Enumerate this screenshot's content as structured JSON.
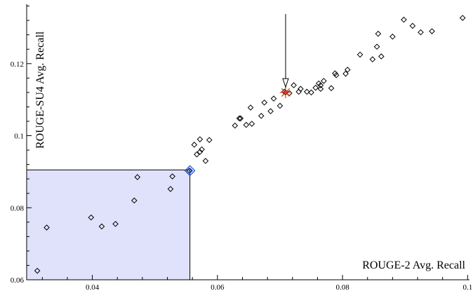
{
  "chart_data": {
    "type": "scatter",
    "xlabel": "ROUGE-2 Avg. Recall",
    "ylabel": "ROUGE-SU4 Avg. Recall",
    "xlim": [
      0.0295,
      0.1003
    ],
    "ylim": [
      0.06,
      0.1365
    ],
    "x_ticks": [
      0.04,
      0.06,
      0.08,
      0.1
    ],
    "x_tick_labels": [
      "0.04",
      "0.06",
      "0.08",
      "0.1"
    ],
    "y_ticks": [
      0.06,
      0.08,
      0.1,
      0.12
    ],
    "y_tick_labels": [
      "0.06",
      "0.08",
      "0.1",
      "0.12"
    ],
    "grid": false,
    "colors": {
      "marker": "#000000",
      "highlight_region_fill": "#dfe2fa",
      "highlight_region_stroke": "#000000",
      "blue_marker": "#1f4fd6",
      "red_marker": "#d8401f"
    },
    "highlight_region": {
      "x": [
        0.0295,
        0.0556
      ],
      "y": [
        0.06,
        0.0905
      ]
    },
    "points": [
      [
        0.0312,
        0.0625
      ],
      [
        0.0327,
        0.0745
      ],
      [
        0.0398,
        0.0773
      ],
      [
        0.0415,
        0.0748
      ],
      [
        0.0437,
        0.0755
      ],
      [
        0.0467,
        0.082
      ],
      [
        0.0472,
        0.0885
      ],
      [
        0.0525,
        0.0852
      ],
      [
        0.0528,
        0.0887
      ],
      [
        0.0555,
        0.0903
      ],
      [
        0.0563,
        0.0975
      ],
      [
        0.0567,
        0.0948
      ],
      [
        0.0572,
        0.099
      ],
      [
        0.0572,
        0.0955
      ],
      [
        0.0575,
        0.0962
      ],
      [
        0.0581,
        0.093
      ],
      [
        0.0587,
        0.0988
      ],
      [
        0.0628,
        0.1028
      ],
      [
        0.0635,
        0.1048
      ],
      [
        0.0637,
        0.1048
      ],
      [
        0.0646,
        0.103
      ],
      [
        0.0653,
        0.1078
      ],
      [
        0.0655,
        0.1033
      ],
      [
        0.067,
        0.1055
      ],
      [
        0.0675,
        0.1092
      ],
      [
        0.0685,
        0.1068
      ],
      [
        0.069,
        0.1103
      ],
      [
        0.07,
        0.1083
      ],
      [
        0.0707,
        0.1122
      ],
      [
        0.0715,
        0.1118
      ],
      [
        0.0722,
        0.114
      ],
      [
        0.073,
        0.1122
      ],
      [
        0.0733,
        0.113
      ],
      [
        0.0743,
        0.1122
      ],
      [
        0.075,
        0.112
      ],
      [
        0.0757,
        0.1133
      ],
      [
        0.0762,
        0.1145
      ],
      [
        0.0765,
        0.114
      ],
      [
        0.0765,
        0.113
      ],
      [
        0.077,
        0.1152
      ],
      [
        0.0782,
        0.1132
      ],
      [
        0.0788,
        0.1173
      ],
      [
        0.079,
        0.1168
      ],
      [
        0.0805,
        0.1172
      ],
      [
        0.0808,
        0.1183
      ],
      [
        0.0828,
        0.1225
      ],
      [
        0.0848,
        0.1212
      ],
      [
        0.0855,
        0.1247
      ],
      [
        0.0857,
        0.1283
      ],
      [
        0.0862,
        0.122
      ],
      [
        0.088,
        0.1275
      ],
      [
        0.0898,
        0.1322
      ],
      [
        0.0912,
        0.1305
      ],
      [
        0.0925,
        0.1287
      ],
      [
        0.0943,
        0.129
      ],
      [
        0.0992,
        0.1327
      ]
    ],
    "special_points": [
      {
        "marker": "blue-diamond",
        "x": 0.0556,
        "y": 0.0903
      },
      {
        "marker": "red-star",
        "x": 0.0709,
        "y": 0.112
      }
    ],
    "arrow": {
      "x": 0.0709,
      "y_from": 0.1365,
      "y_to": 0.1133
    }
  }
}
